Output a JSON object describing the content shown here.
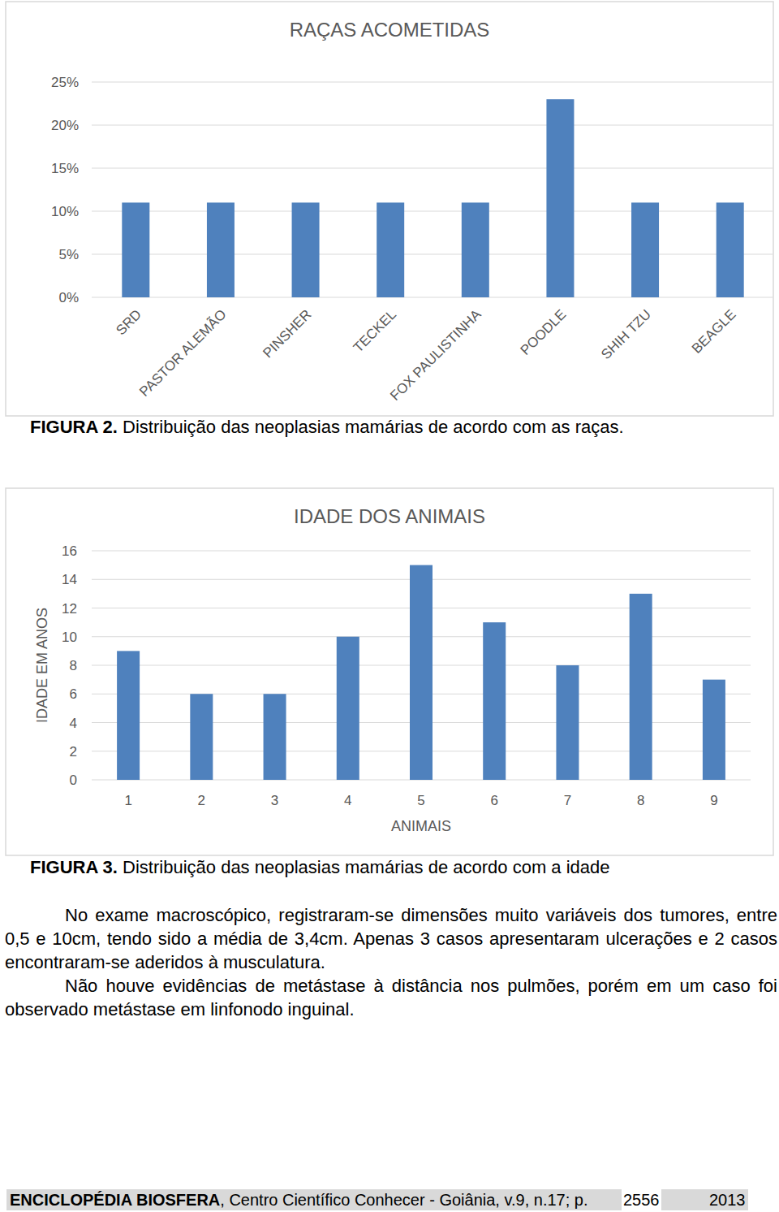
{
  "chart_data": [
    {
      "type": "bar",
      "title": "RAÇAS ACOMETIDAS",
      "categories": [
        "SRD",
        "PASTOR ALEMÃO",
        "PINSHER",
        "TECKEL",
        "FOX PAULISTINHA",
        "POODLE",
        "SHIH TZU",
        "BEAGLE"
      ],
      "values": [
        11,
        11,
        11,
        11,
        11,
        23,
        11,
        11
      ],
      "color": "#4f81bd",
      "ylim": [
        0,
        25
      ],
      "yticks": [
        {
          "value": 0,
          "label": "0%"
        },
        {
          "value": 5,
          "label": "5%"
        },
        {
          "value": 10,
          "label": "10%"
        },
        {
          "value": 15,
          "label": "15%"
        },
        {
          "value": 20,
          "label": "20%"
        },
        {
          "value": 25,
          "label": "25%"
        }
      ],
      "grid": true
    },
    {
      "type": "bar",
      "title": "IDADE DOS ANIMAIS",
      "x_label": "ANIMAIS",
      "y_label": "IDADE EM ANOS",
      "categories": [
        "1",
        "2",
        "3",
        "4",
        "5",
        "6",
        "7",
        "8",
        "9"
      ],
      "values": [
        9,
        6,
        6,
        10,
        15,
        11,
        8,
        13,
        7
      ],
      "color": "#4f81bd",
      "ylim": [
        0,
        16
      ],
      "yticks": [
        0,
        2,
        4,
        6,
        8,
        10,
        12,
        14,
        16
      ],
      "grid": true
    }
  ],
  "captions": [
    {
      "label": "FIGURA 2.",
      "text": "Distribuição das neoplasias mamárias de acordo com as raças."
    },
    {
      "label": "FIGURA 3.",
      "text": "Distribuição das neoplasias mamárias de acordo com a idade"
    }
  ],
  "paragraphs": [
    "No exame macroscópico, registraram-se dimensões muito variáveis dos tumores, entre 0,5 e 10cm, tendo sido a média de 3,4cm. Apenas 3 casos apresentaram ulcerações e 2 casos encontraram-se aderidos à musculatura.",
    "Não houve evidências de metástase à distância nos pulmões, porém em um caso foi observado metástase em linfonodo inguinal."
  ],
  "footer": {
    "journal": "ENCICLOPÉDIA BIOSFERA",
    "details": ", Centro Científico Conhecer - Goiânia, v.9, n.17; p.",
    "page": "2556",
    "year": "2013"
  }
}
